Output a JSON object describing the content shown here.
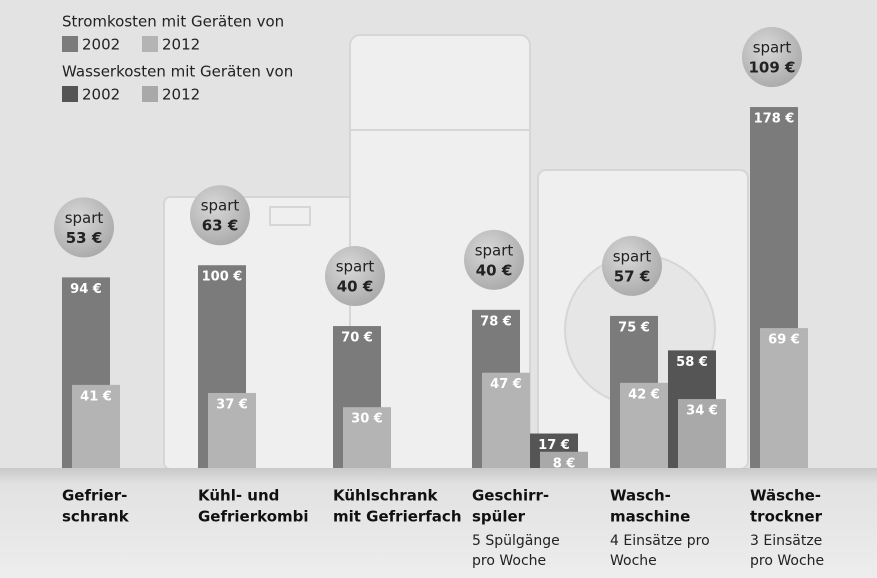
{
  "chart_data": {
    "type": "bar",
    "legend_titles": [
      "Stromkosten mit Geräten von",
      "Wasserkosten mit Geräten von"
    ],
    "categories": [
      [
        "Gefrier-",
        "schrank"
      ],
      [
        "Kühl- und",
        "Gefrierkombi"
      ],
      [
        "Kühlschrank",
        "mit Gefrierfach"
      ],
      [
        "Geschirr-",
        "spüler"
      ],
      [
        "Wasch-",
        "maschine"
      ],
      [
        "Wäsche-",
        "trockner"
      ]
    ],
    "notes": [
      null,
      null,
      null,
      [
        "5 Spülgänge",
        "pro Woche"
      ],
      [
        "4 Einsätze pro",
        "Woche"
      ],
      [
        "3 Einsätze",
        "pro Woche"
      ]
    ],
    "series": [
      {
        "name": "2002",
        "color": "#7b7b7b",
        "values": [
          94,
          100,
          70,
          78,
          75,
          178
        ],
        "value_labels": [
          "94 €",
          "100 €",
          "70 €",
          "78 €",
          "75 €",
          "178 €"
        ]
      },
      {
        "name": "2012",
        "color": "#b4b4b4",
        "values": [
          41,
          37,
          30,
          47,
          42,
          69
        ],
        "value_labels": [
          "41 €",
          "37 €",
          "30 €",
          "47 €",
          "42 €",
          "69 €"
        ]
      },
      {
        "name": "2002",
        "color": "#555555",
        "values": [
          null,
          null,
          null,
          17,
          58,
          null
        ],
        "value_labels": [
          null,
          null,
          null,
          "17 €",
          "58 €",
          null
        ]
      },
      {
        "name": "2012",
        "color": "#a9a9a9",
        "values": [
          null,
          null,
          null,
          8,
          34,
          null
        ],
        "value_labels": [
          null,
          null,
          null,
          "8 €",
          "34 €",
          null
        ]
      }
    ],
    "savings": {
      "label": "spart",
      "values": [
        53,
        63,
        40,
        40,
        57,
        109
      ],
      "value_labels": [
        "53 €",
        "63 €",
        "40 €",
        "40 €",
        "57 €",
        "109 €"
      ]
    },
    "ylim": [
      0,
      180
    ]
  }
}
